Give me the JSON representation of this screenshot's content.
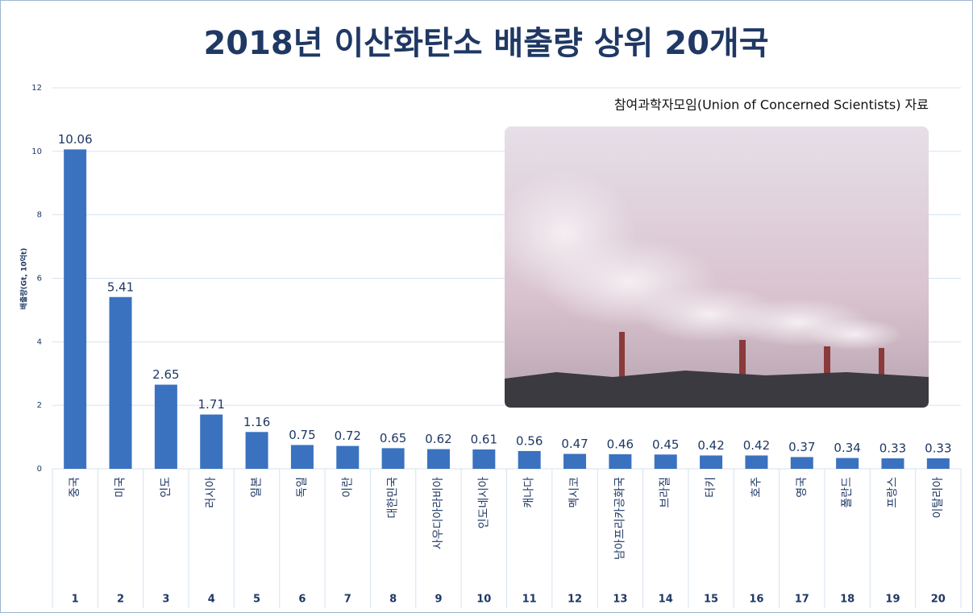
{
  "chart_data": {
    "type": "bar",
    "title": "2018년 이산화탄소 배출량 상위 20개국",
    "subtitle": "참여과학자모임(Union of Concerned Scientists) 자료",
    "y_label": "배출량(Gt, 10억t)",
    "categories": [
      "중국",
      "미국",
      "인도",
      "러시아",
      "일본",
      "독일",
      "이란",
      "대한민국",
      "사우디아라비아",
      "인도네시아",
      "캐나다",
      "멕시코",
      "남아프리카공화국",
      "브라질",
      "터키",
      "호주",
      "영국",
      "폴란드",
      "프랑스",
      "이탈리아"
    ],
    "ranks": [
      1,
      2,
      3,
      4,
      5,
      6,
      7,
      8,
      9,
      10,
      11,
      12,
      13,
      14,
      15,
      16,
      17,
      18,
      19,
      20
    ],
    "values": [
      10.06,
      5.41,
      2.65,
      1.71,
      1.16,
      0.75,
      0.72,
      0.65,
      0.62,
      0.61,
      0.56,
      0.47,
      0.46,
      0.45,
      0.42,
      0.42,
      0.37,
      0.34,
      0.33,
      0.33
    ],
    "color": "#3a72c0",
    "ylim": [
      0,
      12
    ],
    "yticks": [
      0,
      2,
      4,
      6,
      8,
      10,
      12
    ],
    "grid": true
  }
}
